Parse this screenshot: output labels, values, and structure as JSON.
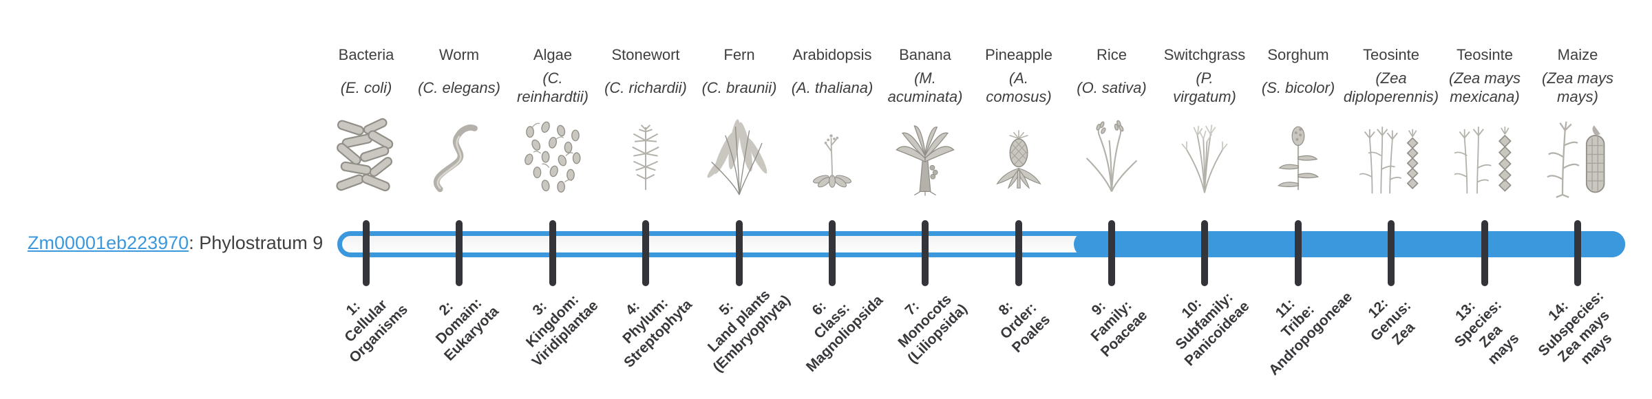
{
  "gene_label": {
    "gene_id": "Zm00001eb223970",
    "text_after": ": Phylostratum 9"
  },
  "phylostratum": {
    "number": 9,
    "highlight_from_stratum": 9,
    "total_strata": 14
  },
  "colors": {
    "accent": "#3B98DC",
    "track_fill": "#FAFAFA",
    "tick": "#34353A",
    "text": "#3F3F3F",
    "strata_label": "#38383C"
  },
  "strata": [
    {
      "stratum": 1,
      "common": "Bacteria",
      "scientific": "(E. coli)",
      "icon": "bacteria-icon",
      "label": "1:\nCellular\nOrganisms"
    },
    {
      "stratum": 2,
      "common": "Worm",
      "scientific": "(C. elegans)",
      "icon": "worm-icon",
      "label": "2:\nDomain:\nEukaryota"
    },
    {
      "stratum": 3,
      "common": "Algae",
      "scientific": "(C.\nreinhardtii)",
      "icon": "algae-icon",
      "label": "3:\nKingdom:\nViridiplantae"
    },
    {
      "stratum": 4,
      "common": "Stonewort",
      "scientific": "(C. richardii)",
      "icon": "stonewort-icon",
      "label": "4:\nPhylum:\nStreptophyta"
    },
    {
      "stratum": 5,
      "common": "Fern",
      "scientific": "(C. braunii)",
      "icon": "fern-icon",
      "label": "5:\nLand plants\n(Embryophyta)"
    },
    {
      "stratum": 6,
      "common": "Arabidopsis",
      "scientific": "(A. thaliana)",
      "icon": "arabidopsis-icon",
      "label": "6:\nClass:\nMagnoliopsida"
    },
    {
      "stratum": 7,
      "common": "Banana",
      "scientific": "(M.\nacuminata)",
      "icon": "banana-icon",
      "label": "7:\nMonocots\n(Liliopsida)"
    },
    {
      "stratum": 8,
      "common": "Pineapple",
      "scientific": "(A.\ncomosus)",
      "icon": "pineapple-icon",
      "label": "8:\nOrder:\nPoales"
    },
    {
      "stratum": 9,
      "common": "Rice",
      "scientific": "(O. sativa)",
      "icon": "rice-icon",
      "label": "9:\nFamily:\nPoaceae"
    },
    {
      "stratum": 10,
      "common": "Switchgrass",
      "scientific": "(P.\nvirgatum)",
      "icon": "switchgrass-icon",
      "label": "10:\nSubfamily:\nPanicoideae"
    },
    {
      "stratum": 11,
      "common": "Sorghum",
      "scientific": "(S. bicolor)",
      "icon": "sorghum-icon",
      "label": "11:\nTribe:\nAndropogoneae"
    },
    {
      "stratum": 12,
      "common": "Teosinte",
      "scientific": "(Zea\ndiploperennis)",
      "icon": "teosinte-diplo-icon",
      "label": "12:\nGenus:\nZea"
    },
    {
      "stratum": 13,
      "common": "Teosinte",
      "scientific": "(Zea mays\nmexicana)",
      "icon": "teosinte-mexicana-icon",
      "label": "13:\nSpecies:\nZea\nmays"
    },
    {
      "stratum": 14,
      "common": "Maize",
      "scientific": "(Zea mays\nmays)",
      "icon": "maize-icon",
      "label": "14:\nSubspecies:\nZea mays\nmays"
    }
  ]
}
